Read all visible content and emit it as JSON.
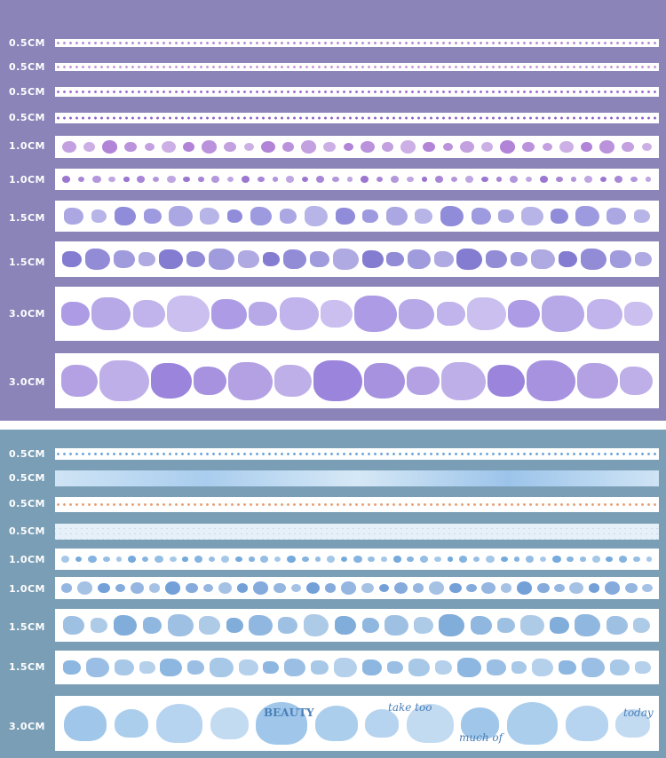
{
  "top_panel": {
    "background": "#8a84b8",
    "rows": [
      {
        "label": "0.5CM",
        "style": "dots",
        "color": "#b58fd6"
      },
      {
        "label": "0.5CM",
        "style": "dots",
        "color": "#c69ad9"
      },
      {
        "label": "0.5CM",
        "style": "dots",
        "color": "#9d6fcf"
      },
      {
        "label": "0.5CM",
        "style": "dots",
        "color": "#8f63c9"
      },
      {
        "label": "1.0CM",
        "style": "sweets",
        "color": "#a36fd0"
      },
      {
        "label": "1.0CM",
        "style": "moons-stars",
        "color": "#8b5fc8"
      },
      {
        "label": "1.5CM",
        "style": "feathers",
        "color": "#7c78d4"
      },
      {
        "label": "1.5CM",
        "style": "constellation-icons",
        "color": "#6d65c9"
      },
      {
        "label": "3.0CM",
        "style": "jellyfish-ocean",
        "color": "#9f8be0"
      },
      {
        "label": "3.0CM",
        "style": "girls-portraits",
        "color": "#8a6ed6"
      }
    ]
  },
  "bottom_panel": {
    "background": "#7a9eb5",
    "rows": [
      {
        "label": "0.5CM",
        "style": "dots",
        "color": "#6fa7db"
      },
      {
        "label": "0.5CM",
        "style": "watercolor",
        "color": "#a9cdee"
      },
      {
        "label": "0.5CM",
        "style": "dots",
        "color": "#e8a27a"
      },
      {
        "label": "0.5CM",
        "style": "grid",
        "color": "#8cb4d7"
      },
      {
        "label": "1.0CM",
        "style": "droplets",
        "color": "#5d9bd6"
      },
      {
        "label": "1.0CM",
        "style": "butterflies",
        "color": "#5b8fd0"
      },
      {
        "label": "1.5CM",
        "style": "sea-scenes",
        "color": "#6a9fd4"
      },
      {
        "label": "1.5CM",
        "style": "ocean-icons",
        "color": "#79aadb"
      },
      {
        "label": "3.0CM",
        "style": "clouds",
        "color": "#8fbde6"
      }
    ],
    "cloud_texts": [
      "BEAUTY",
      "take too",
      "much of",
      "today"
    ]
  }
}
